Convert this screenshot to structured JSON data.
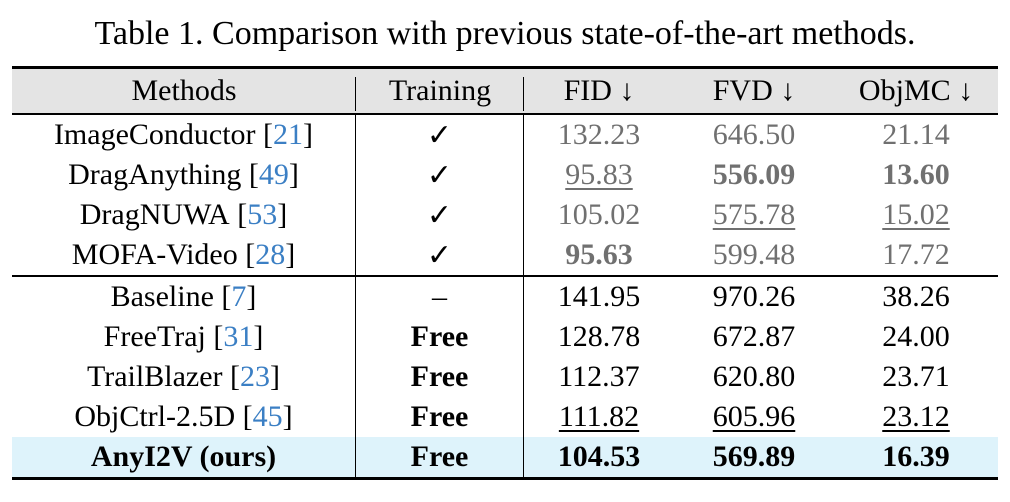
{
  "caption": "Table 1. Comparison with previous state-of-the-art methods.",
  "headers": [
    "Methods",
    "Training",
    "FID ↓",
    "FVD ↓",
    "ObjMC ↓"
  ],
  "rows": [
    {
      "method": "ImageConductor",
      "ref": "21",
      "training": "✓",
      "fid": "132.23",
      "fvd": "646.50",
      "objmc": "21.14"
    },
    {
      "method": "DragAnything",
      "ref": "49",
      "training": "✓",
      "fid": "95.83",
      "fvd": "556.09",
      "objmc": "13.60"
    },
    {
      "method": "DragNUWA",
      "ref": "53",
      "training": "✓",
      "fid": "105.02",
      "fvd": "575.78",
      "objmc": "15.02"
    },
    {
      "method": "MOFA-Video",
      "ref": "28",
      "training": "✓",
      "fid": "95.63",
      "fvd": "599.48",
      "objmc": "17.72"
    },
    {
      "method": "Baseline",
      "ref": "7",
      "training": "–",
      "fid": "141.95",
      "fvd": "970.26",
      "objmc": "38.26"
    },
    {
      "method": "FreeTraj",
      "ref": "31",
      "training": "Free",
      "fid": "128.78",
      "fvd": "672.87",
      "objmc": "24.00"
    },
    {
      "method": "TrailBlazer",
      "ref": "23",
      "training": "Free",
      "fid": "112.37",
      "fvd": "620.80",
      "objmc": "23.71"
    },
    {
      "method": "ObjCtrl-2.5D",
      "ref": "45",
      "training": "Free",
      "fid": "111.82",
      "fvd": "605.96",
      "objmc": "23.12"
    },
    {
      "method": "AnyI2V (ours)",
      "ref": "",
      "training": "Free",
      "fid": "104.53",
      "fvd": "569.89",
      "objmc": "16.39"
    }
  ],
  "colors": {
    "highlight_row": "#def3fb",
    "header_bg": "#e4e4e4",
    "citation": "#3b7fc4",
    "grey_text": "#707070"
  }
}
